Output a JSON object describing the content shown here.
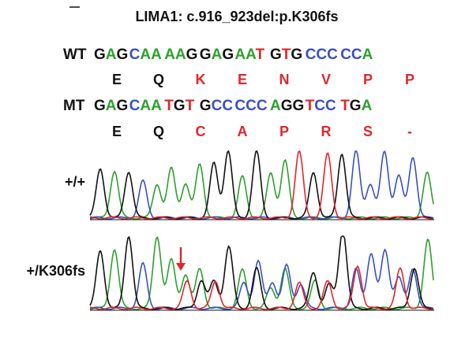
{
  "title": "LIMA1: c.916_923del:p.K306fs",
  "rows": [
    {
      "label": "WT",
      "codons": [
        "GAG",
        "CAA",
        "AAG",
        "GAG",
        "AAT",
        "GTG",
        "CCC",
        "CCA"
      ],
      "amino_acids": [
        "E",
        "Q",
        "K",
        "E",
        "N",
        "V",
        "P",
        "P"
      ],
      "amino_acid_colors": [
        "#111111",
        "#111111",
        "#e0262b",
        "#e0262b",
        "#e0262b",
        "#e0262b",
        "#e0262b",
        "#e0262b"
      ]
    },
    {
      "label": "MT",
      "codons": [
        "GAG",
        "CAA",
        "TGT",
        "GCC",
        "CCC",
        "AGG",
        "TCC",
        "TGA"
      ],
      "amino_acids": [
        "E",
        "Q",
        "C",
        "A",
        "P",
        "R",
        "S",
        "-"
      ],
      "amino_acid_colors": [
        "#111111",
        "#111111",
        "#e0262b",
        "#e0262b",
        "#e0262b",
        "#e0262b",
        "#e0262b",
        "#e0262b"
      ]
    }
  ],
  "traces": [
    {
      "label": "+/+"
    },
    {
      "label": "+/K306fs"
    }
  ],
  "base_colors": {
    "A": "#2ca02c",
    "C": "#3a4fc4",
    "G": "#111111",
    "T": "#e0262b"
  }
}
